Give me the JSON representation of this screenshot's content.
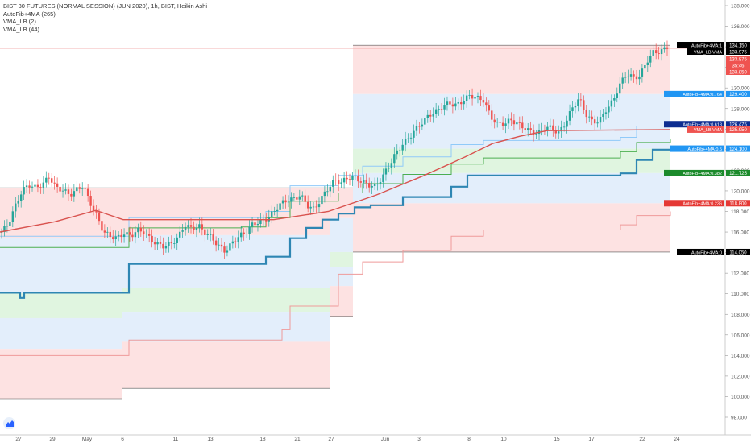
{
  "legend": {
    "title": "BIST 30 FUTURES (NORMAL SESSION) (JUN 2020), 1h, BIST, Heikin Ashi",
    "line2": "AutoFib+4MA (265)",
    "line3": "VMA_LB (2)",
    "line4": "VMA_LB (44)"
  },
  "chart_data": {
    "type": "candlestick",
    "ylim": [
      97,
      138.5
    ],
    "y_ticks": [
      "98.000",
      "100.000",
      "102.000",
      "104.000",
      "106.000",
      "108.000",
      "110.000",
      "112.000",
      "114.000",
      "116.000",
      "118.000",
      "120.000",
      "122.000",
      "124.000",
      "126.000",
      "128.000",
      "130.000",
      "132.000",
      "134.000",
      "136.000",
      "138.000"
    ],
    "x_ticks": [
      "27",
      "29",
      "May",
      "6",
      "11",
      "13",
      "18",
      "21",
      "27",
      "Jun",
      "3",
      "8",
      "10",
      "15",
      "17",
      "22",
      "24"
    ],
    "price_path": [
      [
        0,
        116.0
      ],
      [
        1,
        116.8
      ],
      [
        2,
        118.5
      ],
      [
        3,
        120.0
      ],
      [
        4,
        120.6
      ],
      [
        5,
        120.3
      ],
      [
        6,
        120.6
      ],
      [
        7,
        121.4
      ],
      [
        8,
        120.3
      ],
      [
        9,
        120.1
      ],
      [
        10,
        119.6
      ],
      [
        11,
        120.1
      ],
      [
        12,
        120.5
      ],
      [
        13,
        118.9
      ],
      [
        14,
        117.6
      ],
      [
        15,
        116.0
      ],
      [
        16,
        115.6
      ],
      [
        17,
        115.4
      ],
      [
        18,
        115.9
      ],
      [
        19,
        115.6
      ],
      [
        20,
        116.2
      ],
      [
        21,
        116.0
      ],
      [
        22,
        115.2
      ],
      [
        23,
        114.8
      ],
      [
        24,
        114.6
      ],
      [
        25,
        114.9
      ],
      [
        26,
        115.5
      ],
      [
        27,
        116.7
      ],
      [
        28,
        116.3
      ],
      [
        29,
        116.6
      ],
      [
        30,
        115.9
      ],
      [
        31,
        115.4
      ],
      [
        32,
        114.6
      ],
      [
        33,
        114.1
      ],
      [
        34,
        115.0
      ],
      [
        35,
        115.6
      ],
      [
        36,
        116.0
      ],
      [
        37,
        116.8
      ],
      [
        38,
        117.0
      ],
      [
        39,
        117.3
      ],
      [
        40,
        117.9
      ],
      [
        41,
        118.7
      ],
      [
        42,
        119.1
      ],
      [
        43,
        119.2
      ],
      [
        44,
        119.6
      ],
      [
        45,
        118.6
      ],
      [
        46,
        118.2
      ],
      [
        47,
        119.2
      ],
      [
        48,
        120.2
      ],
      [
        49,
        121.0
      ],
      [
        50,
        120.8
      ],
      [
        51,
        121.3
      ],
      [
        52,
        121.3
      ],
      [
        53,
        120.9
      ],
      [
        54,
        120.6
      ],
      [
        55,
        120.4
      ],
      [
        56,
        121.3
      ],
      [
        57,
        122.4
      ],
      [
        58,
        123.6
      ],
      [
        59,
        124.5
      ],
      [
        60,
        125.2
      ],
      [
        61,
        126.0
      ],
      [
        62,
        126.7
      ],
      [
        63,
        127.4
      ],
      [
        64,
        127.7
      ],
      [
        65,
        128.3
      ],
      [
        66,
        128.5
      ],
      [
        67,
        128.3
      ],
      [
        68,
        128.8
      ],
      [
        69,
        129.3
      ],
      [
        70,
        129.0
      ],
      [
        71,
        128.8
      ],
      [
        72,
        127.2
      ],
      [
        73,
        126.5
      ],
      [
        74,
        126.5
      ],
      [
        75,
        126.9
      ],
      [
        76,
        126.5
      ],
      [
        77,
        126.1
      ],
      [
        78,
        125.7
      ],
      [
        79,
        125.6
      ],
      [
        80,
        126.2
      ],
      [
        81,
        126.1
      ],
      [
        82,
        125.6
      ],
      [
        83,
        126.6
      ],
      [
        84,
        128.0
      ],
      [
        85,
        129.0
      ],
      [
        86,
        127.5
      ],
      [
        87,
        126.7
      ],
      [
        88,
        126.8
      ],
      [
        89,
        127.9
      ],
      [
        90,
        128.7
      ],
      [
        91,
        130.3
      ],
      [
        92,
        131.4
      ],
      [
        93,
        131.0
      ],
      [
        94,
        131.2
      ],
      [
        95,
        132.6
      ],
      [
        96,
        133.5
      ],
      [
        97,
        133.5
      ],
      [
        98,
        134.0
      ]
    ],
    "vma_slow_path": [
      [
        0,
        116.0
      ],
      [
        8,
        117.0
      ],
      [
        14,
        118.1
      ],
      [
        18,
        117.2
      ],
      [
        40,
        117.2
      ],
      [
        48,
        118.0
      ],
      [
        55,
        119.6
      ],
      [
        62,
        121.5
      ],
      [
        68,
        123.3
      ],
      [
        72,
        124.6
      ],
      [
        76,
        125.3
      ],
      [
        80,
        125.85
      ],
      [
        98,
        125.95
      ]
    ],
    "fib_levels": [
      {
        "label": "AutoFib+4MA:1",
        "value": "134.150",
        "y": 134.15,
        "color": "#000000"
      },
      {
        "label": "VMA_LB:VMA",
        "value": "133.975",
        "y": 133.975,
        "color": "#000000"
      },
      {
        "label": "",
        "value": "133.875",
        "y": 132.95,
        "color": "#ef5350"
      },
      {
        "label": "",
        "value": "35:46",
        "y": 132.2,
        "color": "#ef5350"
      },
      {
        "label": "",
        "value": "133.850",
        "y": 131.45,
        "color": "#ef5350"
      },
      {
        "label": "AutoFib+4MA:0.764",
        "value": "129.400",
        "y": 129.4,
        "color": "#2196f3"
      },
      {
        "label": "AutoFib+4MA:0.618",
        "value": "126.475",
        "y": 126.475,
        "color": "#0d2d91"
      },
      {
        "label": "VMA_LB:VMA",
        "value": "125.950",
        "y": 125.95,
        "color": "#ef5350"
      },
      {
        "label": "AutoFib+4MA:0.5",
        "value": "124.100",
        "y": 124.1,
        "color": "#2196f3"
      },
      {
        "label": "AutoFib+4MA:0.382",
        "value": "121.725",
        "y": 121.725,
        "color": "#1b8a2b"
      },
      {
        "label": "AutoFib+4MA:0.236",
        "value": "118.800",
        "y": 118.8,
        "color": "#e53935"
      },
      {
        "label": "AutoFib+4MA:0",
        "value": "114.050",
        "y": 114.05,
        "color": "#000000"
      }
    ]
  }
}
